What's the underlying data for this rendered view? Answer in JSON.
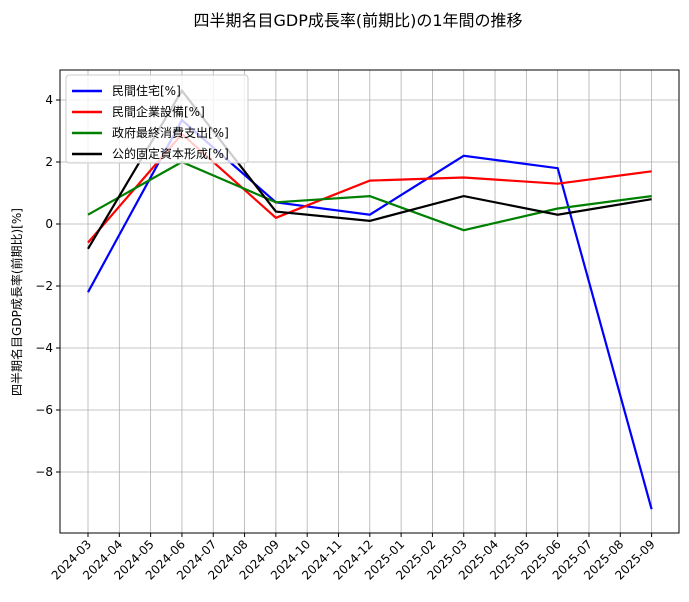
{
  "chart_data": {
    "type": "line",
    "title": "四半期名目GDP成長率(前期比)の1年間の推移",
    "xlabel": "",
    "ylabel": "四半期名目GDP成長率(前期比)[%]",
    "x_ticks": [
      "2024-03",
      "2024-04",
      "2024-05",
      "2024-06",
      "2024-07",
      "2024-08",
      "2024-09",
      "2024-10",
      "2024-11",
      "2024-12",
      "2025-01",
      "2025-02",
      "2025-03",
      "2025-04",
      "2025-05",
      "2025-06",
      "2025-07",
      "2025-08",
      "2025-09"
    ],
    "x": [
      "2024-03",
      "2024-06",
      "2024-09",
      "2024-12",
      "2025-03",
      "2025-06",
      "2025-09"
    ],
    "y_ticks": [
      4,
      2,
      0,
      -2,
      -4,
      -6,
      -8
    ],
    "y_tick_labels": [
      "4",
      "2",
      "0",
      "−2",
      "−4",
      "−6",
      "−8"
    ],
    "ylim": [
      -9.8,
      4.9
    ],
    "grid": true,
    "legend_position": "upper left",
    "series": [
      {
        "name": "民間住宅[%]",
        "color": "#0000ff",
        "values": [
          -2.2,
          3.35,
          0.7,
          0.3,
          2.2,
          1.8,
          -9.2
        ]
      },
      {
        "name": "民間企業設備[%]",
        "color": "#ff0000",
        "values": [
          -0.6,
          2.9,
          0.2,
          1.4,
          1.5,
          1.3,
          1.7
        ]
      },
      {
        "name": "政府最終消費支出[%]",
        "color": "#008000",
        "values": [
          0.3,
          2.0,
          0.7,
          0.9,
          -0.2,
          0.5,
          0.9
        ]
      },
      {
        "name": "公的固定資本形成[%]",
        "color": "#000000",
        "values": [
          -0.8,
          4.3,
          0.4,
          0.1,
          0.9,
          0.3,
          0.8
        ]
      }
    ]
  }
}
